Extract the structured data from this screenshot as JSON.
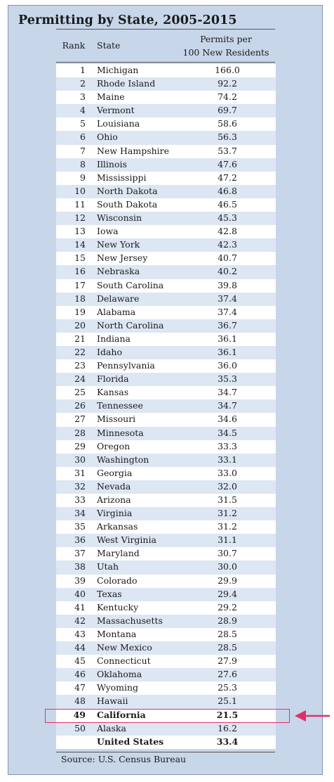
{
  "chart_data": {
    "type": "table",
    "title": "Permitting by State, 2005-2015",
    "columns": [
      "Rank",
      "State",
      "Permits per",
      "100 New Residents"
    ],
    "rows": [
      {
        "rank": "1",
        "state": "Michigan",
        "value": "166.0"
      },
      {
        "rank": "2",
        "state": "Rhode Island",
        "value": "92.2"
      },
      {
        "rank": "3",
        "state": "Maine",
        "value": "74.2"
      },
      {
        "rank": "4",
        "state": "Vermont",
        "value": "69.7"
      },
      {
        "rank": "5",
        "state": "Louisiana",
        "value": "58.6"
      },
      {
        "rank": "6",
        "state": "Ohio",
        "value": "56.3"
      },
      {
        "rank": "7",
        "state": "New Hampshire",
        "value": "53.7"
      },
      {
        "rank": "8",
        "state": "Illinois",
        "value": "47.6"
      },
      {
        "rank": "9",
        "state": "Mississippi",
        "value": "47.2"
      },
      {
        "rank": "10",
        "state": "North Dakota",
        "value": "46.8"
      },
      {
        "rank": "11",
        "state": "South Dakota",
        "value": "46.5"
      },
      {
        "rank": "12",
        "state": "Wisconsin",
        "value": "45.3"
      },
      {
        "rank": "13",
        "state": "Iowa",
        "value": "42.8"
      },
      {
        "rank": "14",
        "state": "New York",
        "value": "42.3"
      },
      {
        "rank": "15",
        "state": "New Jersey",
        "value": "40.7"
      },
      {
        "rank": "16",
        "state": "Nebraska",
        "value": "40.2"
      },
      {
        "rank": "17",
        "state": "South Carolina",
        "value": "39.8"
      },
      {
        "rank": "18",
        "state": "Delaware",
        "value": "37.4"
      },
      {
        "rank": "19",
        "state": "Alabama",
        "value": "37.4"
      },
      {
        "rank": "20",
        "state": "North Carolina",
        "value": "36.7"
      },
      {
        "rank": "21",
        "state": "Indiana",
        "value": "36.1"
      },
      {
        "rank": "22",
        "state": "Idaho",
        "value": "36.1"
      },
      {
        "rank": "23",
        "state": "Pennsylvania",
        "value": "36.0"
      },
      {
        "rank": "24",
        "state": "Florida",
        "value": "35.3"
      },
      {
        "rank": "25",
        "state": "Kansas",
        "value": "34.7"
      },
      {
        "rank": "26",
        "state": "Tennessee",
        "value": "34.7"
      },
      {
        "rank": "27",
        "state": "Missouri",
        "value": "34.6"
      },
      {
        "rank": "28",
        "state": "Minnesota",
        "value": "34.5"
      },
      {
        "rank": "29",
        "state": "Oregon",
        "value": "33.3"
      },
      {
        "rank": "30",
        "state": "Washington",
        "value": "33.1"
      },
      {
        "rank": "31",
        "state": "Georgia",
        "value": "33.0"
      },
      {
        "rank": "32",
        "state": "Nevada",
        "value": "32.0"
      },
      {
        "rank": "33",
        "state": "Arizona",
        "value": "31.5"
      },
      {
        "rank": "34",
        "state": "Virginia",
        "value": "31.2"
      },
      {
        "rank": "35",
        "state": "Arkansas",
        "value": "31.2"
      },
      {
        "rank": "36",
        "state": "West Virginia",
        "value": "31.1"
      },
      {
        "rank": "37",
        "state": "Maryland",
        "value": "30.7"
      },
      {
        "rank": "38",
        "state": "Utah",
        "value": "30.0"
      },
      {
        "rank": "39",
        "state": "Colorado",
        "value": "29.9"
      },
      {
        "rank": "40",
        "state": "Texas",
        "value": "29.4"
      },
      {
        "rank": "41",
        "state": "Kentucky",
        "value": "29.2"
      },
      {
        "rank": "42",
        "state": "Massachusetts",
        "value": "28.9"
      },
      {
        "rank": "43",
        "state": "Montana",
        "value": "28.5"
      },
      {
        "rank": "44",
        "state": "New Mexico",
        "value": "28.5"
      },
      {
        "rank": "45",
        "state": "Connecticut",
        "value": "27.9"
      },
      {
        "rank": "46",
        "state": "Oklahoma",
        "value": "27.6"
      },
      {
        "rank": "47",
        "state": "Wyoming",
        "value": "25.3"
      },
      {
        "rank": "48",
        "state": "Hawaii",
        "value": "25.1"
      },
      {
        "rank": "49",
        "state": "California",
        "value": "21.5"
      },
      {
        "rank": "50",
        "state": "Alaska",
        "value": "16.2"
      }
    ],
    "total": {
      "rank": "",
      "state": "United States",
      "value": "33.4"
    },
    "highlighted_state": "California",
    "source": "Source: U.S. Census Bureau"
  },
  "colors": {
    "panel_bg": "#c8d6ea",
    "row_odd": "#ffffff",
    "row_even": "#dde6f3",
    "highlight": "#e0306a"
  }
}
